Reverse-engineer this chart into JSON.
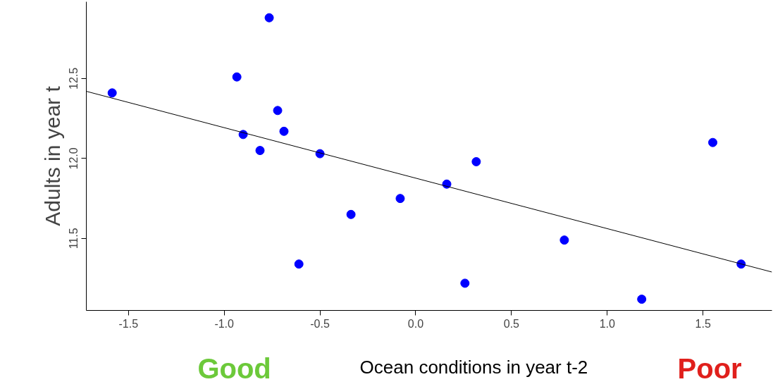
{
  "chart_data": {
    "type": "scatter",
    "xlabel": "Ocean conditions in year t-2",
    "ylabel": "Adults in year t",
    "xlim": [
      -1.72,
      1.86
    ],
    "ylim": [
      11.05,
      12.98
    ],
    "xticks": [
      -1.5,
      {
        "value": -1,
        "label": "-1.0"
      },
      -0.5,
      {
        "value": 0,
        "label": "0.0"
      },
      0.5,
      {
        "value": 1,
        "label": "1.0"
      },
      1.5
    ],
    "yticks": [
      11.5,
      {
        "value": 12,
        "label": "12.0"
      },
      12.5
    ],
    "grid": false,
    "series": [
      {
        "marker": "circle",
        "color": "#0000ff",
        "x": [
          -1.585,
          -0.934,
          -0.765,
          -0.721,
          -0.901,
          -0.688,
          -0.813,
          -0.5,
          -0.61,
          -0.338,
          -0.081,
          0.162,
          0.316,
          0.257,
          0.776,
          1.18,
          1.551,
          1.699
        ],
        "values": [
          12.41,
          12.51,
          12.88,
          12.3,
          12.15,
          12.17,
          12.05,
          12.03,
          11.34,
          11.65,
          11.75,
          11.84,
          11.98,
          11.22,
          11.49,
          11.12,
          12.1,
          11.34
        ]
      },
      {
        "type": "line",
        "color": "#000000",
        "x": [
          -1.72,
          1.86
        ],
        "values": [
          12.42,
          11.29
        ]
      }
    ],
    "annotations": [
      "Good",
      "Poor"
    ]
  }
}
